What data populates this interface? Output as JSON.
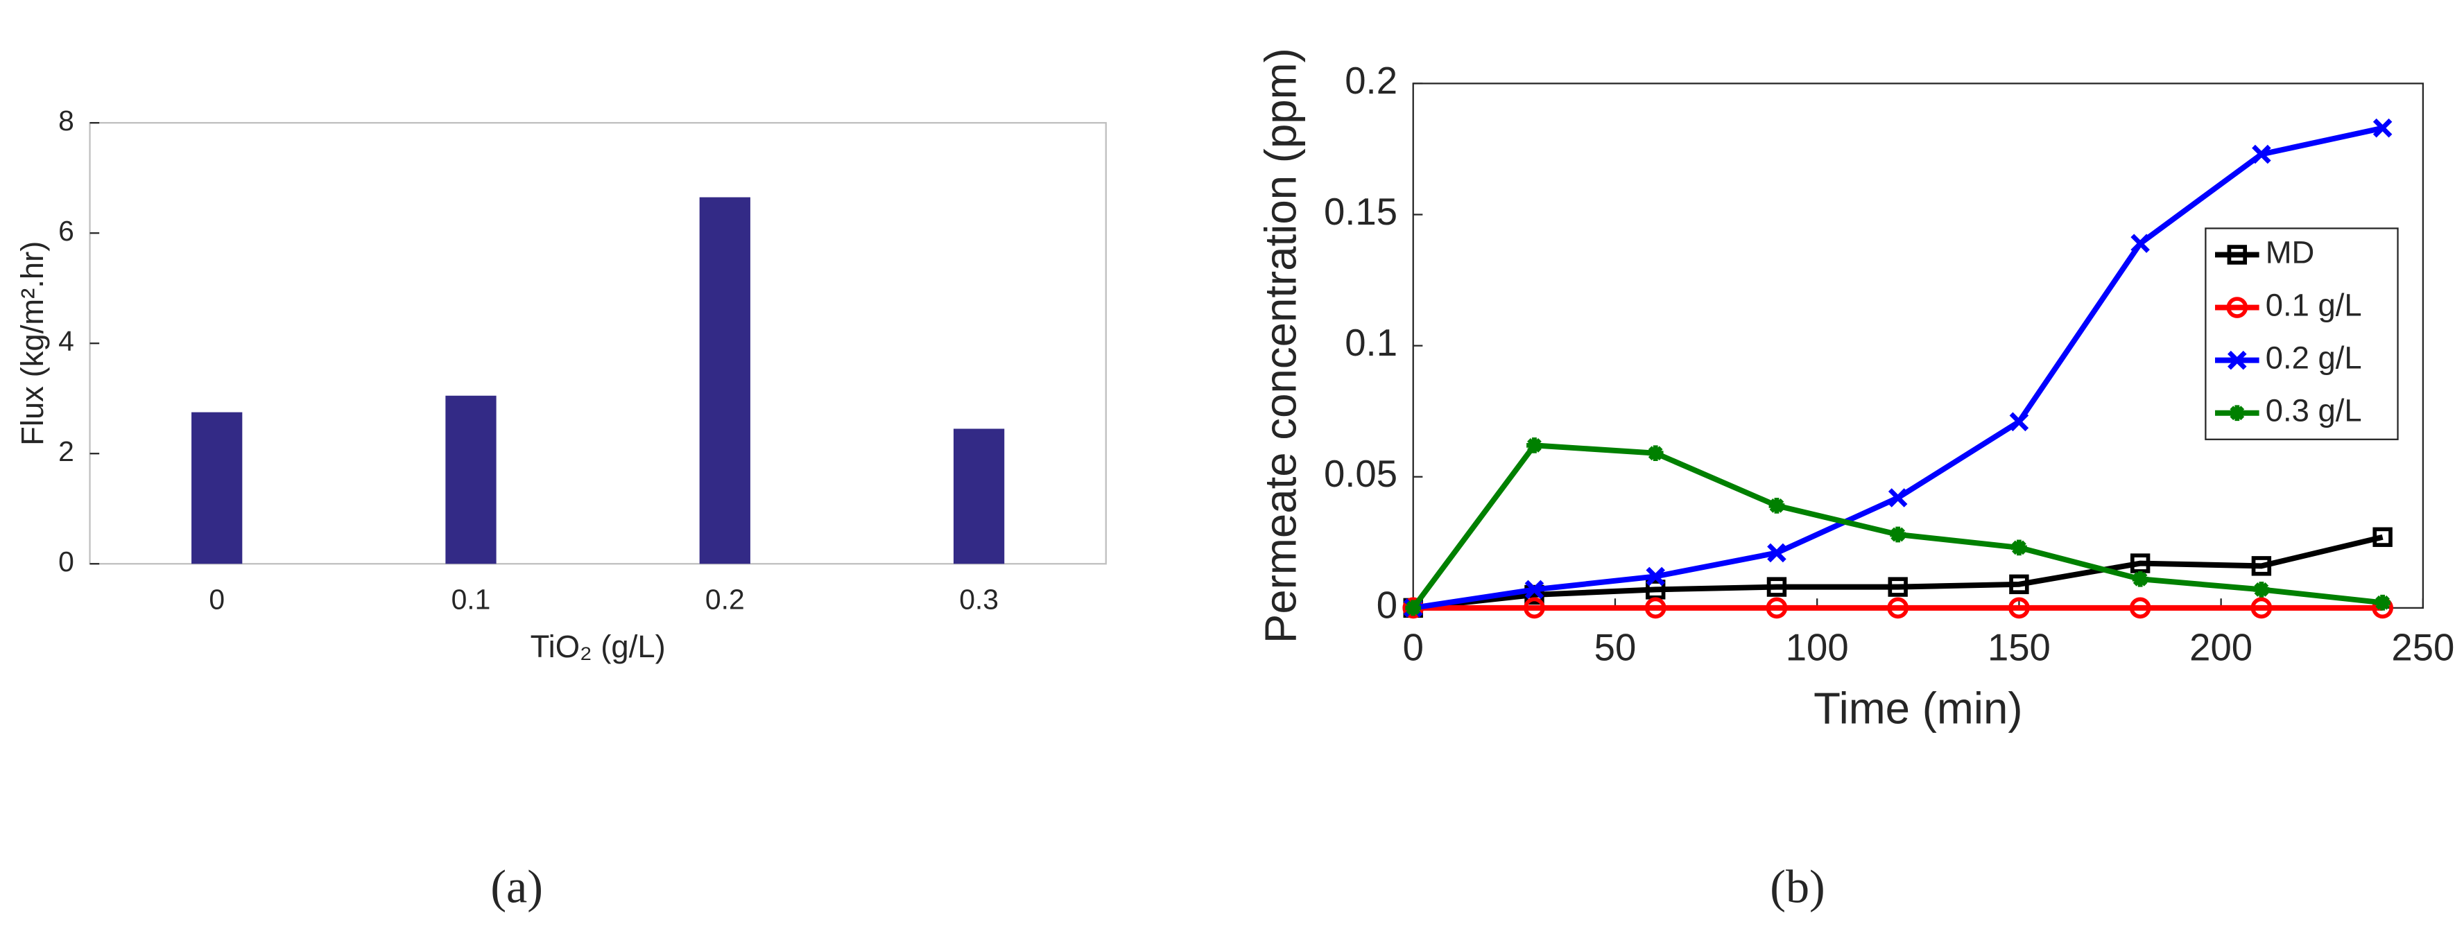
{
  "chart_data": [
    {
      "type": "bar",
      "caption": "(a)",
      "x_label": "TiO₂ (g/L)",
      "y_label": "Flux (kg/m².hr)",
      "categories": [
        "0",
        "0.1",
        "0.2",
        "0.3"
      ],
      "values": [
        2.75,
        3.05,
        6.65,
        2.45
      ],
      "color": "#332a86",
      "ylim": [
        0,
        8
      ],
      "yticks": [
        0,
        2,
        4,
        6,
        8
      ]
    },
    {
      "type": "line",
      "caption": "(b)",
      "x_label": "Time (min)",
      "y_label": "Permeate concentration (ppm)",
      "x": [
        0,
        30,
        60,
        90,
        120,
        150,
        180,
        210,
        240
      ],
      "series": [
        {
          "name": "MD",
          "color": "#000000",
          "marker": "square",
          "values": [
            0,
            0.005,
            0.007,
            0.008,
            0.008,
            0.009,
            0.017,
            0.016,
            0.027
          ]
        },
        {
          "name": "0.1 g/L",
          "color": "#ff0000",
          "marker": "circle",
          "values": [
            0,
            0,
            0,
            0,
            0,
            0,
            0,
            0,
            0
          ]
        },
        {
          "name": "0.2 g/L",
          "color": "#0000ff",
          "marker": "x",
          "values": [
            0,
            0.007,
            0.012,
            0.021,
            0.042,
            0.071,
            0.139,
            0.173,
            0.183
          ]
        },
        {
          "name": "0.3 g/L",
          "color": "#008000",
          "marker": "star",
          "values": [
            0,
            0.062,
            0.059,
            0.039,
            0.028,
            0.023,
            0.011,
            0.007,
            0.002
          ]
        }
      ],
      "xlim": [
        0,
        250
      ],
      "xticks": [
        0,
        50,
        100,
        150,
        200,
        250
      ],
      "ylim": [
        0,
        0.2
      ],
      "yticks": [
        0,
        0.05,
        0.1,
        0.15,
        0.2
      ],
      "legend": "northeast"
    }
  ]
}
